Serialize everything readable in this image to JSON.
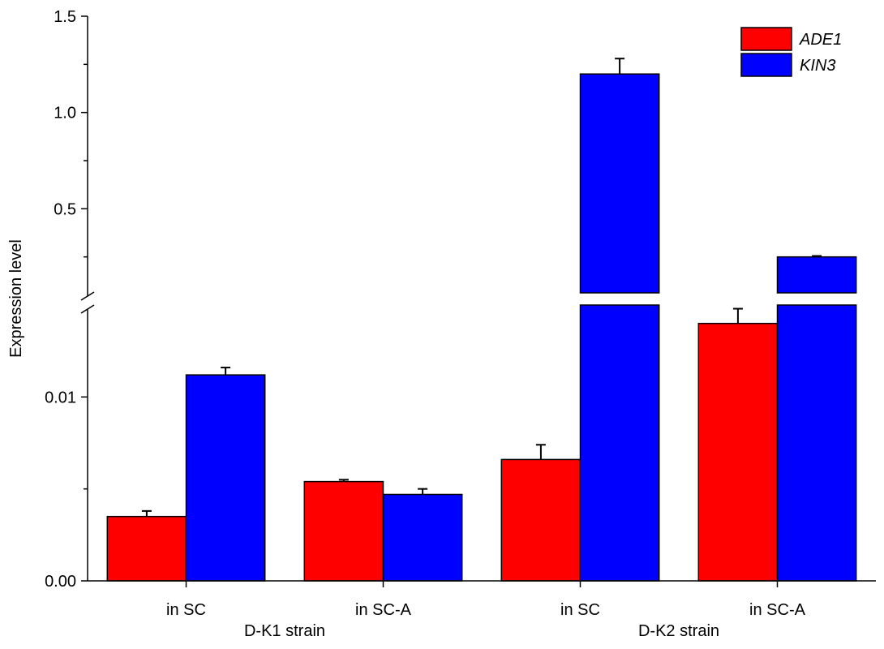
{
  "chart_data": {
    "type": "bar",
    "title": "",
    "ylabel": "Expression level",
    "categories": [
      "in SC",
      "in SC-A",
      "in SC",
      "in SC-A"
    ],
    "groups": [
      "D-K1 strain",
      "D-K2 strain"
    ],
    "series": [
      {
        "name": "ADE1",
        "color": "#ff0000",
        "values": [
          0.0035,
          0.0054,
          0.0066,
          0.014
        ],
        "errors": [
          0.0003,
          0.0001,
          0.0008,
          0.0008
        ]
      },
      {
        "name": "KIN3",
        "color": "#0000ff",
        "values": [
          0.0112,
          0.0047,
          1.2,
          0.25
        ],
        "errors": [
          0.0004,
          0.0003,
          0.08,
          0.005
        ]
      }
    ],
    "y_ticks_lower": [
      "0.00",
      "0.01"
    ],
    "y_ticks_upper": [
      "0.5",
      "1.0",
      "1.5"
    ],
    "axis_break": {
      "lower_range": [
        0,
        0.015
      ],
      "upper_range": [
        0,
        1.5
      ]
    },
    "legend": "top-right",
    "grid": false
  }
}
